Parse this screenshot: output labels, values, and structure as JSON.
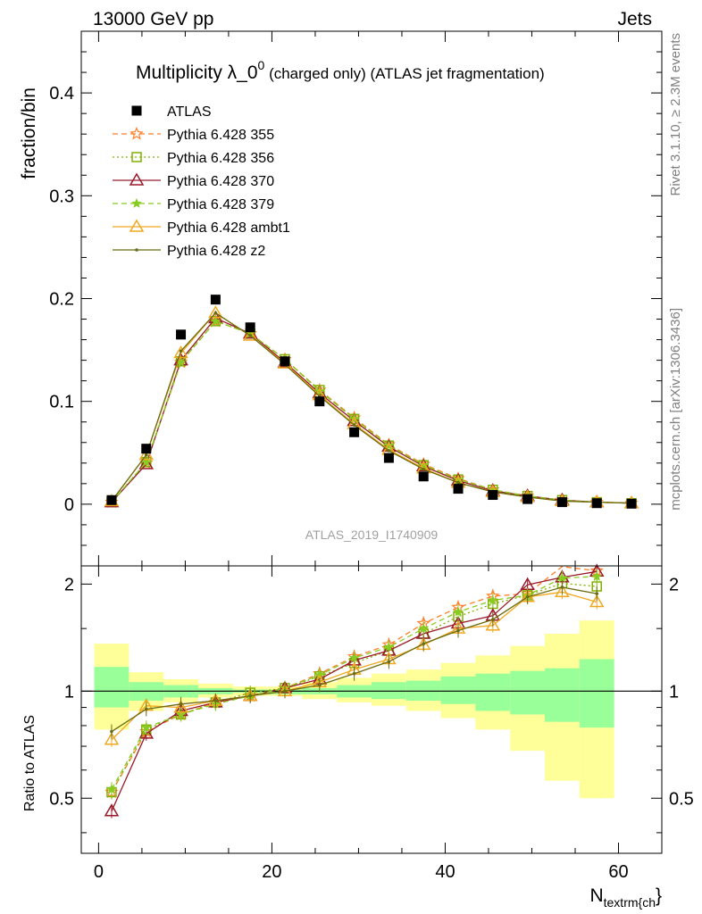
{
  "header": {
    "left": "13000 GeV pp",
    "right": "Jets"
  },
  "title": {
    "main": "Multiplicity λ_0",
    "superscript": "0",
    "suffix": " (charged only) (ATLAS jet fragmentation)"
  },
  "analysis_label": "ATLAS_2019_I1740909",
  "side_labels": {
    "rivet": "Rivet 3.1.10, ≥ 2.3M events",
    "mcplots": "mcplots.cern.ch [arXiv:1306.3436]"
  },
  "axes": {
    "top_ylabel": "fraction/bin",
    "bottom_ylabel": "Ratio to ATLAS",
    "xlabel_main": "N",
    "xlabel_sub": "textrm{ch",
    "xlabel_close": "}"
  },
  "colors": {
    "band_yellow": "#ffff99",
    "band_green": "#99ff99",
    "data": "#000000",
    "p355": "#ff7f2a",
    "p356": "#80b000",
    "p370": "#9a1a2a",
    "p379": "#88cc22",
    "ambt1": "#f0a820",
    "z2": "#6b6b10"
  },
  "chart_data": [
    {
      "type": "line",
      "title": "Multiplicity λ_0^0 (charged only) (ATLAS jet fragmentation)",
      "xlabel": "N_textrm{ch}",
      "ylabel": "fraction/bin",
      "xlim": [
        -2,
        65
      ],
      "ylim": [
        -0.06,
        0.46
      ],
      "yticks": [
        0,
        0.1,
        0.2,
        0.3,
        0.4
      ],
      "ytick_labels": [
        "0",
        "0.1",
        "0.2",
        "0.3",
        "0.4"
      ],
      "legend_position": "top-left",
      "x": [
        1.5,
        5.5,
        9.5,
        13.5,
        17.5,
        21.5,
        25.5,
        29.5,
        33.5,
        37.5,
        41.5,
        45.5,
        49.5,
        53.5,
        57.5,
        61.5
      ],
      "data": {
        "name": "ATLAS",
        "values": [
          0.004,
          0.054,
          0.165,
          0.199,
          0.172,
          0.139,
          0.1,
          0.07,
          0.045,
          0.027,
          0.015,
          0.009,
          0.005,
          0.002,
          0.001,
          0.0005
        ]
      },
      "series": [
        {
          "name": "Pythia 6.428 355",
          "style": "p355",
          "values": [
            0.002,
            0.04,
            0.138,
            0.178,
            0.166,
            0.141,
            0.111,
            0.084,
            0.058,
            0.039,
            0.025,
            0.014,
            0.008,
            0.004,
            0.002,
            0.001
          ]
        },
        {
          "name": "Pythia 6.428 356",
          "style": "p356",
          "values": [
            0.002,
            0.041,
            0.139,
            0.178,
            0.166,
            0.141,
            0.111,
            0.083,
            0.057,
            0.038,
            0.024,
            0.014,
            0.008,
            0.004,
            0.002,
            0.001
          ]
        },
        {
          "name": "Pythia 6.428 370",
          "style": "p370",
          "values": [
            0.002,
            0.039,
            0.14,
            0.181,
            0.166,
            0.138,
            0.108,
            0.081,
            0.056,
            0.037,
            0.023,
            0.013,
            0.008,
            0.004,
            0.002,
            0.001
          ]
        },
        {
          "name": "Pythia 6.428 379",
          "style": "p379",
          "values": [
            0.002,
            0.041,
            0.138,
            0.178,
            0.166,
            0.141,
            0.11,
            0.083,
            0.057,
            0.038,
            0.024,
            0.014,
            0.008,
            0.004,
            0.002,
            0.001
          ]
        },
        {
          "name": "Pythia 6.428 ambt1",
          "style": "ambt1",
          "values": [
            0.003,
            0.048,
            0.147,
            0.186,
            0.164,
            0.137,
            0.106,
            0.078,
            0.053,
            0.035,
            0.021,
            0.012,
            0.007,
            0.003,
            0.002,
            0.001
          ]
        },
        {
          "name": "Pythia 6.428 z2",
          "style": "z2",
          "values": [
            0.003,
            0.048,
            0.149,
            0.186,
            0.164,
            0.136,
            0.105,
            0.077,
            0.052,
            0.034,
            0.021,
            0.012,
            0.007,
            0.003,
            0.002,
            0.001
          ]
        }
      ]
    },
    {
      "type": "line",
      "xlabel": "N_textrm{ch}",
      "ylabel": "Ratio to ATLAS",
      "xlim": [
        -2,
        65
      ],
      "ylim": [
        0.35,
        2.25
      ],
      "yticks": [
        0.5,
        1,
        2
      ],
      "ytick_labels": [
        "0.5",
        "1",
        "2"
      ],
      "xticks": [
        0,
        20,
        40,
        60
      ],
      "xtick_labels": [
        "0",
        "20",
        "40",
        "60"
      ],
      "bins": [
        [
          -0.5,
          3.5
        ],
        [
          3.5,
          7.5
        ],
        [
          7.5,
          11.5
        ],
        [
          11.5,
          15.5
        ],
        [
          15.5,
          19.5
        ],
        [
          19.5,
          23.5
        ],
        [
          23.5,
          27.5
        ],
        [
          27.5,
          31.5
        ],
        [
          31.5,
          35.5
        ],
        [
          35.5,
          39.5
        ],
        [
          39.5,
          43.5
        ],
        [
          43.5,
          47.5
        ],
        [
          47.5,
          51.5
        ],
        [
          51.5,
          55.5
        ],
        [
          55.5,
          59.5
        ]
      ],
      "band_yellow": [
        [
          0.78,
          1.36
        ],
        [
          0.88,
          1.13
        ],
        [
          0.93,
          1.08
        ],
        [
          0.96,
          1.05
        ],
        [
          0.97,
          1.03
        ],
        [
          0.97,
          1.03
        ],
        [
          0.95,
          1.06
        ],
        [
          0.93,
          1.09
        ],
        [
          0.91,
          1.12
        ],
        [
          0.88,
          1.15
        ],
        [
          0.84,
          1.2
        ],
        [
          0.78,
          1.26
        ],
        [
          0.68,
          1.34
        ],
        [
          0.56,
          1.45
        ],
        [
          0.5,
          1.58
        ]
      ],
      "band_green": [
        [
          0.9,
          1.17
        ],
        [
          0.94,
          1.06
        ],
        [
          0.96,
          1.04
        ],
        [
          0.98,
          1.02
        ],
        [
          0.99,
          1.01
        ],
        [
          0.98,
          1.01
        ],
        [
          0.98,
          1.02
        ],
        [
          0.96,
          1.04
        ],
        [
          0.95,
          1.06
        ],
        [
          0.94,
          1.07
        ],
        [
          0.92,
          1.1
        ],
        [
          0.88,
          1.12
        ],
        [
          0.86,
          1.14
        ],
        [
          0.82,
          1.16
        ],
        [
          0.79,
          1.23
        ]
      ],
      "x": [
        1.5,
        5.5,
        9.5,
        13.5,
        17.5,
        21.5,
        25.5,
        29.5,
        33.5,
        37.5,
        41.5,
        45.5,
        49.5,
        53.5,
        57.5
      ],
      "series": [
        {
          "name": "Pythia 6.428 355",
          "style": "p355",
          "values": [
            0.52,
            0.77,
            0.86,
            0.93,
            0.97,
            1.02,
            1.12,
            1.25,
            1.35,
            1.55,
            1.72,
            1.85,
            1.88,
            2.26,
            2.18
          ]
        },
        {
          "name": "Pythia 6.428 356",
          "style": "p356",
          "values": [
            0.52,
            0.78,
            0.86,
            0.93,
            0.99,
            1.02,
            1.1,
            1.2,
            1.3,
            1.45,
            1.62,
            1.76,
            1.86,
            2.01,
            1.97
          ]
        },
        {
          "name": "Pythia 6.428 370",
          "style": "p370",
          "values": [
            0.46,
            0.76,
            0.88,
            0.93,
            0.97,
            1.02,
            1.08,
            1.22,
            1.3,
            1.45,
            1.55,
            1.63,
            1.99,
            2.09,
            2.17
          ]
        },
        {
          "name": "Pythia 6.428 379",
          "style": "p379",
          "values": [
            0.53,
            0.79,
            0.86,
            0.92,
            0.97,
            1.02,
            1.11,
            1.24,
            1.33,
            1.5,
            1.67,
            1.8,
            1.86,
            2.08,
            2.1
          ]
        },
        {
          "name": "Pythia 6.428 ambt1",
          "style": "ambt1",
          "values": [
            0.73,
            0.91,
            0.9,
            0.94,
            0.97,
            1.0,
            1.06,
            1.15,
            1.23,
            1.35,
            1.5,
            1.53,
            1.84,
            1.9,
            1.78
          ]
        },
        {
          "name": "Pythia 6.428 z2",
          "style": "z2",
          "values": [
            0.77,
            0.89,
            0.92,
            0.94,
            0.97,
            1.0,
            1.04,
            1.12,
            1.21,
            1.36,
            1.48,
            1.59,
            1.84,
            1.96,
            1.88
          ]
        }
      ]
    }
  ]
}
